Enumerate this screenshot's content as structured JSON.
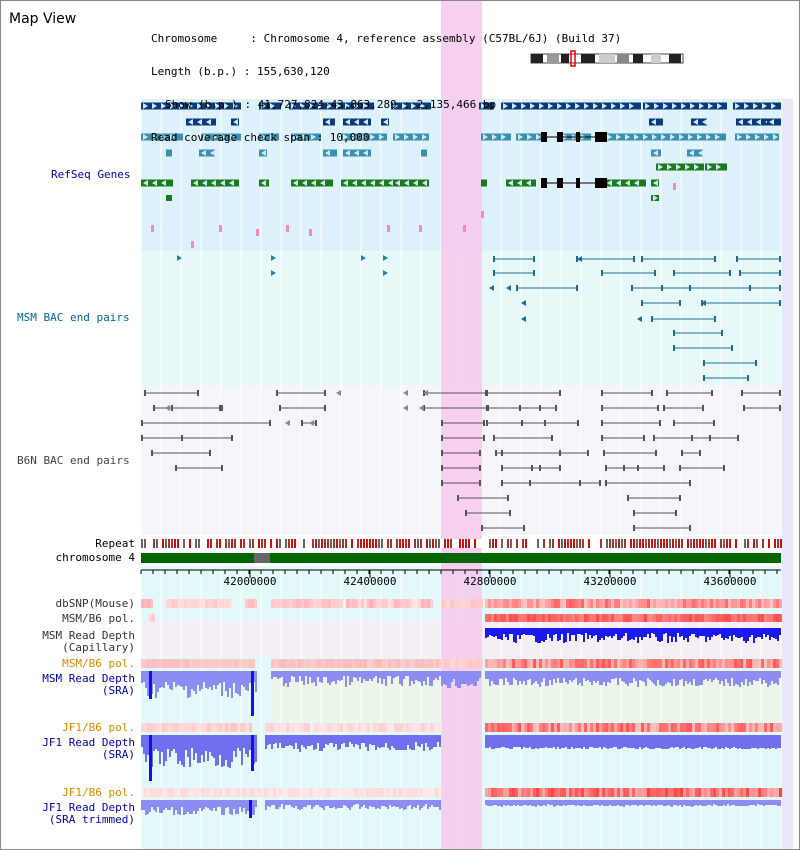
{
  "view_title": "Map View",
  "info": {
    "chromosome": "Chromosome     : Chromosome 4, reference assembly (C57BL/6J) (Build 37)",
    "length": "Length (b.p.) : 155,630,120",
    "show": "Show (b.p.) : 41,727,824-43,863,289 : 2,135,466 bp",
    "coverage": "Read coverage check span : 10,000"
  },
  "tracks": {
    "refseq": "RefSeq Genes",
    "msm_bac": "MSM BAC end pairs",
    "b6n_bac": "B6N BAC end pairs",
    "repeat": "Repeat",
    "chromosome": "chromosome 4"
  },
  "ruler": {
    "ticks": [
      "42000000",
      "42400000",
      "42800000",
      "43200000",
      "43600000"
    ]
  },
  "rows": {
    "dbsnp": "dbSNP(Mouse)",
    "msm_pol_1": "MSM/B6 pol.",
    "msm_depth_cap_1": "MSM Read Depth",
    "msm_depth_cap_2": "(Capillary)",
    "msm_pol_2": "MSM/B6 pol.",
    "msm_depth_sra_1": "MSM Read Depth",
    "msm_depth_sra_2": "(SRA)",
    "jf1_pol_1": "JF1/B6 pol.",
    "jf1_depth_sra_1": "JF1 Read Depth",
    "jf1_depth_sra_2": "(SRA)",
    "jf1_pol_2": "JF1/B6 pol.",
    "jf1_depth_trim_1": "JF1 Read Depth",
    "jf1_depth_trim_2": "(SRA trimmed)"
  },
  "colors": {
    "refseq_label": "#0000aa",
    "msm_label": "#006699",
    "b6n_label": "#444444",
    "pol_label": "#dd8800",
    "depth_label": "#0000aa",
    "highlight": "#f6c8ee",
    "chromosome": "#006600"
  }
}
